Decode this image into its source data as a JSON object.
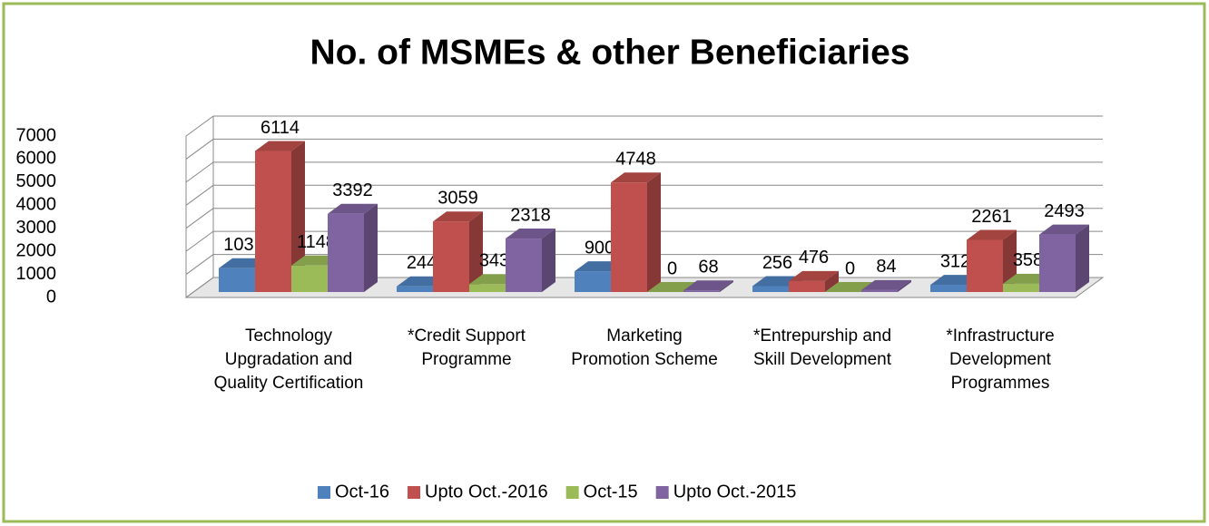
{
  "chart_data": {
    "type": "bar3d",
    "title": "No. of MSMEs & other Beneficiaries",
    "categories": [
      "Technology Upgradation and Quality Certification",
      "*Credit Support Programme",
      "Marketing Promotion Scheme",
      "*Entrepurship and Skill Development",
      "*Infrastructure Development Programmes"
    ],
    "series": [
      {
        "name": "Oct-16",
        "color": "#4f81bd",
        "values": [
          1031,
          244,
          900,
          256,
          312
        ]
      },
      {
        "name": "Upto Oct.-2016",
        "color": "#c0504d",
        "values": [
          6114,
          3059,
          4748,
          476,
          2261
        ]
      },
      {
        "name": "Oct-15",
        "color": "#9bbb59",
        "values": [
          1148,
          343,
          0,
          0,
          358
        ]
      },
      {
        "name": "Upto Oct.-2015",
        "color": "#8064a2",
        "values": [
          3392,
          2318,
          68,
          84,
          2493
        ]
      }
    ],
    "ylim": [
      0,
      7000
    ],
    "yticks": [
      0,
      1000,
      2000,
      3000,
      4000,
      5000,
      6000,
      7000
    ],
    "grid": true,
    "legend": "bottom"
  }
}
